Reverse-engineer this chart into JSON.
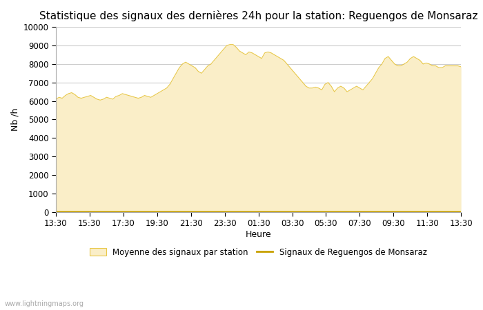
{
  "title": "Statistique des signaux des dernières 24h pour la station: Reguengos de Monsaraz",
  "xlabel": "Heure",
  "ylabel": "Nb /h",
  "ylim": [
    0,
    10000
  ],
  "yticks": [
    0,
    1000,
    2000,
    3000,
    4000,
    5000,
    6000,
    7000,
    8000,
    9000,
    10000
  ],
  "xtick_labels": [
    "13:30",
    "15:30",
    "17:30",
    "19:30",
    "21:30",
    "23:30",
    "01:30",
    "03:30",
    "05:30",
    "07:30",
    "09:30",
    "11:30",
    "13:30"
  ],
  "fill_color": "#FAEEC8",
  "fill_edge_color": "#E8C84A",
  "line_color": "#C8A000",
  "background_color": "#ffffff",
  "grid_color": "#cccccc",
  "title_fontsize": 11,
  "axis_fontsize": 9,
  "tick_fontsize": 8.5,
  "watermark": "www.lightningmaps.org",
  "legend_fill_label": "Moyenne des signaux par station",
  "legend_line_label": "Signaux de Reguengos de Monsaraz",
  "x_values": [
    0,
    1,
    2,
    3,
    4,
    5,
    6,
    7,
    8,
    9,
    10,
    11,
    12,
    13,
    14,
    15,
    16,
    17,
    18,
    19,
    20,
    21,
    22,
    23,
    24,
    25,
    26,
    27,
    28,
    29,
    30,
    31,
    32,
    33,
    34,
    35,
    36,
    37,
    38,
    39,
    40,
    41,
    42,
    43,
    44,
    45,
    46,
    47,
    48,
    49,
    50,
    51,
    52,
    53,
    54,
    55,
    56,
    57,
    58,
    59,
    60,
    61,
    62,
    63,
    64,
    65,
    66,
    67,
    68,
    69,
    70,
    71,
    72,
    73,
    74,
    75,
    76,
    77,
    78,
    79,
    80,
    81,
    82,
    83,
    84,
    85,
    86,
    87,
    88,
    89,
    90,
    91,
    92,
    93,
    94,
    95,
    96,
    97,
    98,
    99,
    100,
    101,
    102,
    103,
    104,
    105,
    106,
    107,
    108,
    109,
    110,
    111,
    112,
    113,
    114,
    115,
    116,
    117,
    118,
    119,
    120,
    121,
    122,
    123,
    124,
    125,
    126,
    127,
    128
  ],
  "y_fill": [
    6100,
    6200,
    6150,
    6300,
    6400,
    6450,
    6350,
    6200,
    6150,
    6200,
    6250,
    6300,
    6200,
    6100,
    6050,
    6100,
    6200,
    6150,
    6100,
    6250,
    6300,
    6400,
    6350,
    6300,
    6250,
    6200,
    6150,
    6200,
    6300,
    6250,
    6200,
    6300,
    6400,
    6500,
    6600,
    6700,
    6900,
    7200,
    7500,
    7800,
    8000,
    8100,
    8000,
    7900,
    7800,
    7600,
    7500,
    7700,
    7900,
    8000,
    8200,
    8400,
    8600,
    8800,
    9000,
    9050,
    9050,
    8900,
    8700,
    8600,
    8500,
    8650,
    8600,
    8500,
    8400,
    8300,
    8600,
    8650,
    8600,
    8500,
    8400,
    8300,
    8200,
    8000,
    7800,
    7600,
    7400,
    7200,
    7000,
    6800,
    6700,
    6700,
    6750,
    6700,
    6600,
    6900,
    7000,
    6800,
    6500,
    6700,
    6800,
    6700,
    6500,
    6600,
    6700,
    6800,
    6700,
    6600,
    6800,
    7000,
    7200,
    7500,
    7800,
    8000,
    8300,
    8400,
    8200,
    8000,
    7900,
    7900,
    8000,
    8100,
    8300,
    8400,
    8300,
    8200,
    8000,
    8050,
    8000,
    7900,
    7900,
    7800,
    7800,
    7900,
    7900,
    7900,
    7900,
    7900,
    7850
  ],
  "y_line": [
    50,
    50,
    50,
    50,
    50,
    50,
    50,
    50,
    50,
    50,
    50,
    50,
    50,
    50,
    50,
    50,
    50,
    50,
    50,
    50,
    50,
    50,
    50,
    50,
    50,
    50,
    50,
    50,
    50,
    50,
    50,
    50,
    50,
    50,
    50,
    50,
    50,
    50,
    50,
    50,
    50,
    50,
    50,
    50,
    50,
    50,
    50,
    50,
    50,
    50,
    50,
    50,
    50,
    50,
    50,
    50,
    50,
    50,
    50,
    50,
    50,
    50,
    50,
    50,
    50,
    50,
    50,
    50,
    50,
    50,
    50,
    50,
    50,
    50,
    50,
    50,
    50,
    50,
    50,
    50,
    50,
    50,
    50,
    50,
    50,
    50,
    50,
    50,
    50,
    50,
    50,
    50,
    50,
    50,
    50,
    50,
    50,
    50,
    50,
    50,
    50,
    50,
    50,
    50,
    50,
    50,
    50,
    50,
    50,
    50,
    50,
    50,
    50,
    50,
    50,
    50,
    50,
    50,
    50,
    50,
    50,
    50,
    50,
    50,
    50,
    50,
    50,
    50,
    50
  ]
}
